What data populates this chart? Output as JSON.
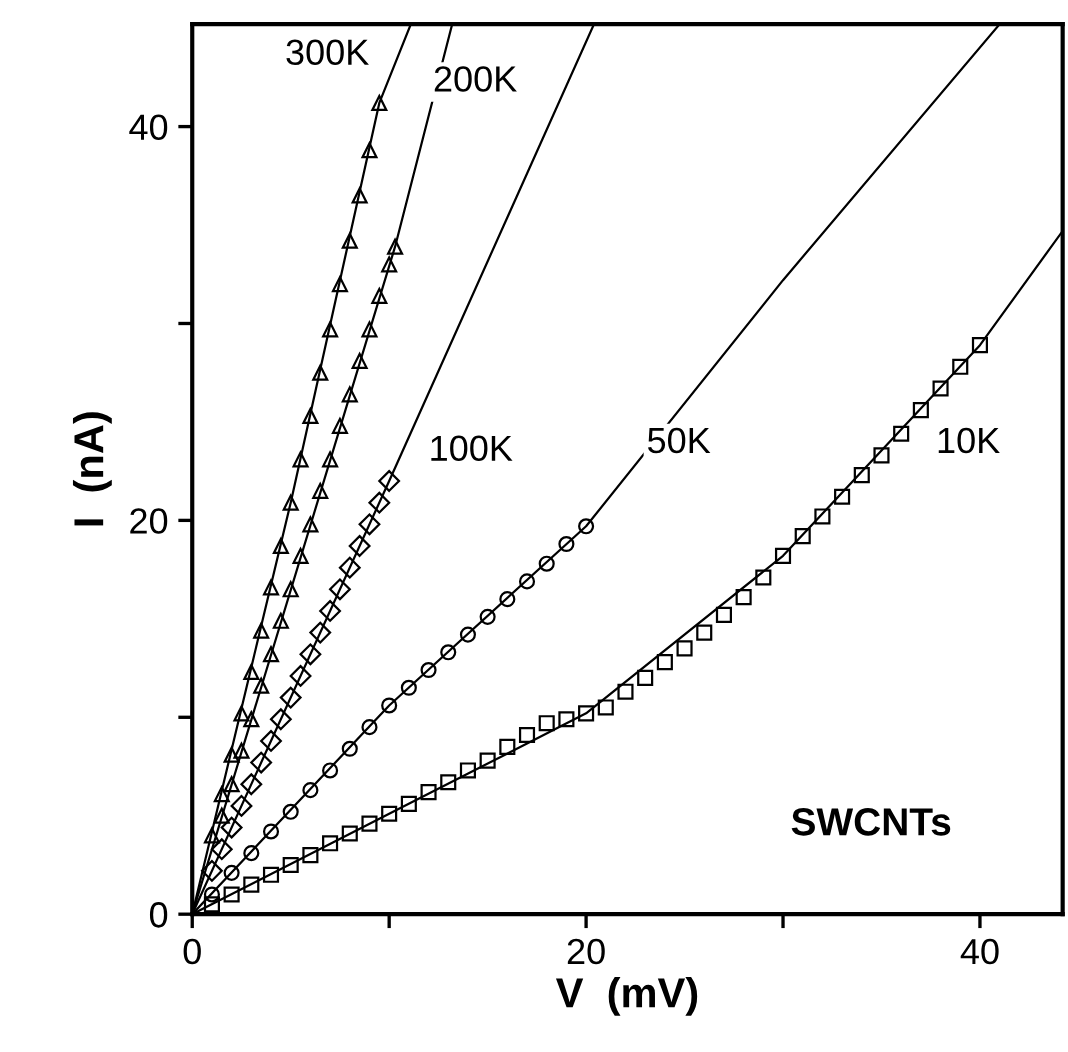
{
  "chart_data": {
    "type": "scatter",
    "xlabel": "V  (mV)",
    "ylabel": "I  (nA)",
    "xlim": [
      0,
      44.2
    ],
    "ylim": [
      0,
      45.2
    ],
    "xticks": [
      0,
      {
        "value": 10,
        "label": null
      },
      20,
      {
        "value": 30,
        "label": null
      },
      40
    ],
    "yticks": [
      0,
      {
        "value": 10,
        "label": null
      },
      20,
      {
        "value": 30,
        "label": null
      },
      40
    ],
    "grid": false,
    "legend": false,
    "series": [
      {
        "marker": "triangle",
        "color": "#000000",
        "x": [
          1,
          1.5,
          2,
          2.5,
          3,
          3.5,
          4,
          4.5,
          5,
          5.5,
          6,
          6.5,
          7,
          7.5,
          8,
          8.5,
          9,
          9.5
        ],
        "values": [
          4.0,
          6.1,
          8.1,
          10.2,
          12.3,
          14.4,
          16.6,
          18.7,
          20.9,
          23.1,
          25.3,
          27.5,
          29.7,
          32.0,
          34.2,
          36.5,
          38.8,
          41.2
        ]
      },
      {
        "type": "line",
        "marker": "none",
        "color": "#000000",
        "x": [
          0,
          5,
          9.5,
          11.1
        ],
        "values": [
          0,
          20.9,
          41.2,
          45.2
        ]
      },
      {
        "marker": "triangle",
        "color": "#000000",
        "x": [
          1.5,
          2,
          2.5,
          3,
          3.5,
          4,
          4.5,
          5,
          5.5,
          6,
          6.5,
          7,
          7.5,
          8,
          8.5,
          9,
          9.5,
          10,
          10.3
        ],
        "values": [
          5.0,
          6.6,
          8.3,
          9.9,
          11.6,
          13.2,
          14.9,
          16.5,
          18.2,
          19.8,
          21.5,
          23.1,
          24.8,
          26.4,
          28.1,
          29.7,
          31.4,
          33.0,
          33.9
        ]
      },
      {
        "type": "line",
        "marker": "none",
        "color": "#000000",
        "x": [
          0,
          10.3,
          13.2
        ],
        "values": [
          0,
          33.9,
          45.2
        ]
      },
      {
        "marker": "diamond",
        "color": "#000000",
        "x": [
          1,
          1.5,
          2,
          2.5,
          3,
          3.5,
          4,
          4.5,
          5,
          5.5,
          6,
          6.5,
          7,
          7.5,
          8,
          8.5,
          9,
          9.5,
          10
        ],
        "values": [
          2.2,
          3.3,
          4.4,
          5.5,
          6.6,
          7.7,
          8.8,
          9.9,
          11.0,
          12.1,
          13.2,
          14.3,
          15.4,
          16.5,
          17.6,
          18.7,
          19.8,
          20.9,
          22.0
        ]
      },
      {
        "type": "line",
        "marker": "none",
        "color": "#000000",
        "x": [
          0,
          10,
          20.4
        ],
        "values": [
          0,
          22.0,
          45.2
        ]
      },
      {
        "marker": "circle",
        "color": "#000000",
        "x": [
          1,
          2,
          3,
          4,
          5,
          6,
          7,
          8,
          9,
          10,
          11,
          12,
          13,
          14,
          15,
          16,
          17,
          18,
          19,
          20
        ],
        "values": [
          1.0,
          2.1,
          3.1,
          4.2,
          5.2,
          6.3,
          7.3,
          8.4,
          9.5,
          10.6,
          11.5,
          12.4,
          13.3,
          14.2,
          15.1,
          16.0,
          16.9,
          17.8,
          18.8,
          19.7
        ]
      },
      {
        "type": "line",
        "marker": "none",
        "color": "#000000",
        "x": [
          0,
          10,
          20,
          30,
          41.0
        ],
        "values": [
          0,
          10.6,
          19.7,
          32.2,
          45.2
        ]
      },
      {
        "marker": "square",
        "color": "#000000",
        "x": [
          1,
          2,
          3,
          4,
          5,
          6,
          7,
          8,
          9,
          10,
          11,
          12,
          13,
          14,
          15,
          16,
          17,
          18,
          19,
          20,
          21,
          22,
          23,
          24,
          25,
          26,
          27,
          28,
          29,
          30,
          31,
          32,
          33,
          34,
          35,
          36,
          37,
          38,
          39,
          40
        ],
        "values": [
          0.5,
          1.0,
          1.5,
          2.0,
          2.5,
          3.0,
          3.6,
          4.1,
          4.6,
          5.1,
          5.6,
          6.2,
          6.7,
          7.3,
          7.8,
          8.5,
          9.1,
          9.7,
          9.9,
          10.2,
          10.5,
          11.3,
          12.0,
          12.8,
          13.5,
          14.3,
          15.2,
          16.1,
          17.1,
          18.2,
          19.2,
          20.2,
          21.2,
          22.3,
          23.3,
          24.4,
          25.6,
          26.7,
          27.8,
          28.9
        ]
      },
      {
        "type": "line",
        "marker": "none",
        "color": "#000000",
        "x": [
          0,
          10,
          20,
          30,
          40,
          44.2
        ],
        "values": [
          0,
          5.1,
          10.2,
          18.2,
          28.9,
          34.7
        ]
      }
    ],
    "annotations": [
      "300K",
      "200K",
      "100K",
      {
        "text": "50K",
        "x": 24.7,
        "y": 23.9
      },
      {
        "text": "10K",
        "x": 39.4,
        "y": 23.9
      },
      "SWCNTs"
    ]
  }
}
